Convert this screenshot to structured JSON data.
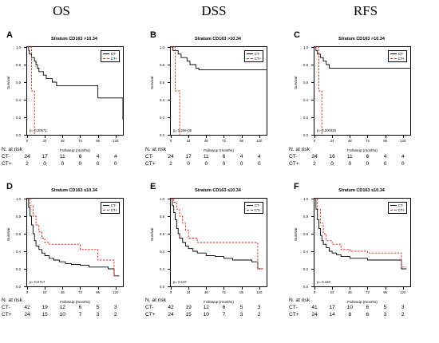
{
  "column_titles": [
    "OS",
    "DSS",
    "RFS"
  ],
  "axis": {
    "ylabel": "Survival",
    "xlabel": "Followup (months)",
    "xticks": [
      0,
      24,
      48,
      72,
      96,
      120
    ],
    "yticks": [
      "0.0",
      "0.2",
      "0.4",
      "0.6",
      "0.8",
      "1.0"
    ]
  },
  "colors": {
    "ct_minus": "#000000",
    "ct_plus": "#e8211b"
  },
  "chart_data": [
    {
      "panel": "A",
      "type": "line",
      "title": "Stratum CD163 >10.34",
      "xlabel": "Followup (months)",
      "ylabel": "Survival",
      "xlim": [
        0,
        130
      ],
      "ylim": [
        0,
        1
      ],
      "legend": [
        "CT-",
        "CT+"
      ],
      "legend_position": "top-right",
      "pvalue": "p= 0.00571",
      "series": [
        {
          "name": "CT-",
          "x": [
            0,
            2,
            3,
            5,
            6,
            8,
            10,
            12,
            14,
            16,
            18,
            22,
            26,
            30,
            34,
            40,
            48,
            60,
            84,
            96,
            120,
            127,
            130
          ],
          "y": [
            1.0,
            0.96,
            0.92,
            0.92,
            0.88,
            0.88,
            0.84,
            0.8,
            0.76,
            0.72,
            0.72,
            0.68,
            0.64,
            0.64,
            0.6,
            0.56,
            0.56,
            0.56,
            0.56,
            0.42,
            0.42,
            0.42,
            0.17
          ]
        },
        {
          "name": "CT+",
          "x": [
            0,
            6,
            8,
            10
          ],
          "y": [
            1.0,
            0.5,
            0.5,
            0.0
          ]
        }
      ],
      "risk_table": {
        "header": "N. at risk",
        "times": [
          0,
          24,
          48,
          72,
          96,
          120
        ],
        "rows": [
          {
            "label": "CT-",
            "values": [
              "24",
              "17",
              "11",
              "6",
              "4",
              "4"
            ]
          },
          {
            "label": "CT+",
            "values": [
              "2",
              "0",
              "0",
              "0",
              "0",
              "0"
            ]
          }
        ]
      }
    },
    {
      "panel": "B",
      "type": "line",
      "title": "Stratum CD163 >10.34",
      "xlabel": "Followup (months)",
      "ylabel": "Survival",
      "xlim": [
        0,
        130
      ],
      "ylim": [
        0,
        1
      ],
      "legend": [
        "CT-",
        "CT+"
      ],
      "legend_position": "top-right",
      "pvalue": "p= 5.29e-05",
      "series": [
        {
          "name": "CT-",
          "x": [
            0,
            3,
            6,
            10,
            14,
            18,
            22,
            26,
            30,
            34,
            38,
            48,
            72,
            96,
            120,
            130
          ],
          "y": [
            1.0,
            0.96,
            0.96,
            0.92,
            0.88,
            0.88,
            0.84,
            0.8,
            0.8,
            0.76,
            0.74,
            0.74,
            0.74,
            0.74,
            0.74,
            0.74
          ]
        },
        {
          "name": "CT+",
          "x": [
            0,
            6,
            8,
            12
          ],
          "y": [
            1.0,
            0.5,
            0.5,
            0.0
          ]
        }
      ],
      "risk_table": {
        "header": "N. at risk",
        "times": [
          0,
          24,
          48,
          72,
          96,
          120
        ],
        "rows": [
          {
            "label": "CT-",
            "values": [
              "24",
              "17",
              "11",
              "6",
              "4",
              "4"
            ]
          },
          {
            "label": "CT+",
            "values": [
              "2",
              "0",
              "0",
              "0",
              "0",
              "0"
            ]
          }
        ]
      }
    },
    {
      "panel": "C",
      "type": "line",
      "title": "Stratum CD163 >10.34",
      "xlabel": "Followup (months)",
      "ylabel": "Survival",
      "xlim": [
        0,
        130
      ],
      "ylim": [
        0,
        1
      ],
      "legend": [
        "CT-",
        "CT+"
      ],
      "legend_position": "top-right",
      "pvalue": "p= 0.000320",
      "series": [
        {
          "name": "CT-",
          "x": [
            0,
            2,
            4,
            8,
            12,
            16,
            20,
            24,
            48,
            72,
            96,
            120,
            130
          ],
          "y": [
            1.0,
            0.96,
            0.92,
            0.88,
            0.84,
            0.8,
            0.76,
            0.76,
            0.76,
            0.76,
            0.76,
            0.76,
            0.76
          ]
        },
        {
          "name": "CT+",
          "x": [
            0,
            6,
            8,
            10
          ],
          "y": [
            1.0,
            0.5,
            0.5,
            0.0
          ]
        }
      ],
      "risk_table": {
        "header": "N. at risk",
        "times": [
          0,
          24,
          48,
          72,
          96,
          120
        ],
        "rows": [
          {
            "label": "CT-",
            "values": [
              "24",
              "16",
              "11",
              "6",
              "4",
              "4"
            ]
          },
          {
            "label": "CT+",
            "values": [
              "2",
              "0",
              "0",
              "0",
              "0",
              "0"
            ]
          }
        ]
      }
    },
    {
      "panel": "D",
      "type": "line",
      "title": "Stratum CD163 ≤10.34",
      "xlabel": "Followup (months)",
      "ylabel": "Survival",
      "xlim": [
        0,
        130
      ],
      "ylim": [
        0,
        1
      ],
      "legend": [
        "CT-",
        "CT+"
      ],
      "legend_position": "top-right",
      "pvalue": "p= 0.0717",
      "series": [
        {
          "name": "CT-",
          "x": [
            0,
            2,
            4,
            6,
            8,
            10,
            12,
            16,
            20,
            24,
            30,
            36,
            44,
            52,
            60,
            72,
            84,
            96,
            110,
            118,
            125
          ],
          "y": [
            1.0,
            0.9,
            0.8,
            0.7,
            0.6,
            0.52,
            0.46,
            0.42,
            0.38,
            0.35,
            0.32,
            0.3,
            0.28,
            0.26,
            0.25,
            0.24,
            0.22,
            0.22,
            0.2,
            0.12,
            0.12
          ]
        },
        {
          "name": "CT+",
          "x": [
            0,
            4,
            8,
            12,
            16,
            20,
            24,
            30,
            36,
            60,
            72,
            84,
            96,
            108,
            118,
            125
          ],
          "y": [
            1.0,
            0.92,
            0.8,
            0.7,
            0.62,
            0.55,
            0.5,
            0.48,
            0.48,
            0.48,
            0.42,
            0.42,
            0.3,
            0.3,
            0.12,
            0.12
          ]
        }
      ],
      "risk_table": {
        "header": "N. at risk",
        "times": [
          0,
          24,
          48,
          72,
          96,
          120
        ],
        "rows": [
          {
            "label": "CT-",
            "values": [
              "42",
              "19",
              "12",
              "6",
              "5",
              "3"
            ]
          },
          {
            "label": "CT+",
            "values": [
              "24",
              "15",
              "10",
              "7",
              "3",
              "2"
            ]
          }
        ]
      }
    },
    {
      "panel": "E",
      "type": "line",
      "title": "Stratum CD163 ≤10.34",
      "xlabel": "Followup (months)",
      "ylabel": "Survival",
      "xlim": [
        0,
        130
      ],
      "ylim": [
        0,
        1
      ],
      "legend": [
        "CT-",
        "CT+"
      ],
      "legend_position": "top-right",
      "pvalue": "p= 0.147",
      "series": [
        {
          "name": "CT-",
          "x": [
            0,
            2,
            4,
            6,
            8,
            10,
            12,
            16,
            20,
            24,
            30,
            36,
            48,
            60,
            72,
            84,
            96,
            110,
            118,
            125
          ],
          "y": [
            1.0,
            0.92,
            0.84,
            0.76,
            0.66,
            0.6,
            0.55,
            0.5,
            0.46,
            0.43,
            0.4,
            0.38,
            0.35,
            0.34,
            0.32,
            0.3,
            0.3,
            0.28,
            0.2,
            0.2
          ]
        },
        {
          "name": "CT+",
          "x": [
            0,
            4,
            8,
            12,
            16,
            20,
            24,
            36,
            60,
            84,
            96,
            108,
            118,
            125
          ],
          "y": [
            1.0,
            0.96,
            0.88,
            0.8,
            0.72,
            0.64,
            0.55,
            0.5,
            0.5,
            0.5,
            0.5,
            0.5,
            0.2,
            0.2
          ]
        }
      ],
      "risk_table": {
        "header": "N. at risk",
        "times": [
          0,
          24,
          48,
          72,
          96,
          120
        ],
        "rows": [
          {
            "label": "CT-",
            "values": [
              "42",
              "19",
              "12",
              "6",
              "5",
              "3"
            ]
          },
          {
            "label": "CT+",
            "values": [
              "24",
              "15",
              "10",
              "7",
              "3",
              "2"
            ]
          }
        ]
      }
    },
    {
      "panel": "F",
      "type": "line",
      "title": "Stratum CD163 ≤10.34",
      "xlabel": "Followup (months)",
      "ylabel": "Survival",
      "xlim": [
        0,
        130
      ],
      "ylim": [
        0,
        1
      ],
      "legend": [
        "CT-",
        "CT+"
      ],
      "legend_position": "top-right",
      "pvalue": "p= 0.428",
      "series": [
        {
          "name": "CT-",
          "x": [
            0,
            2,
            4,
            6,
            8,
            10,
            12,
            16,
            20,
            24,
            30,
            36,
            48,
            60,
            72,
            84,
            96,
            110,
            118,
            125
          ],
          "y": [
            1.0,
            0.88,
            0.76,
            0.66,
            0.58,
            0.52,
            0.48,
            0.44,
            0.4,
            0.38,
            0.36,
            0.34,
            0.32,
            0.32,
            0.3,
            0.3,
            0.3,
            0.3,
            0.2,
            0.2
          ]
        },
        {
          "name": "CT+",
          "x": [
            0,
            4,
            8,
            12,
            16,
            24,
            36,
            48,
            72,
            96,
            108,
            118,
            125
          ],
          "y": [
            1.0,
            0.88,
            0.72,
            0.6,
            0.52,
            0.48,
            0.42,
            0.4,
            0.38,
            0.38,
            0.38,
            0.22,
            0.22
          ]
        }
      ],
      "risk_table": {
        "header": "N. at risk",
        "times": [
          0,
          24,
          48,
          72,
          96,
          120
        ],
        "rows": [
          {
            "label": "CT-",
            "values": [
              "41",
              "17",
              "10",
              "6",
              "5",
              "3"
            ]
          },
          {
            "label": "CT+",
            "values": [
              "24",
              "14",
              "8",
              "6",
              "3",
              "2"
            ]
          }
        ]
      }
    }
  ]
}
